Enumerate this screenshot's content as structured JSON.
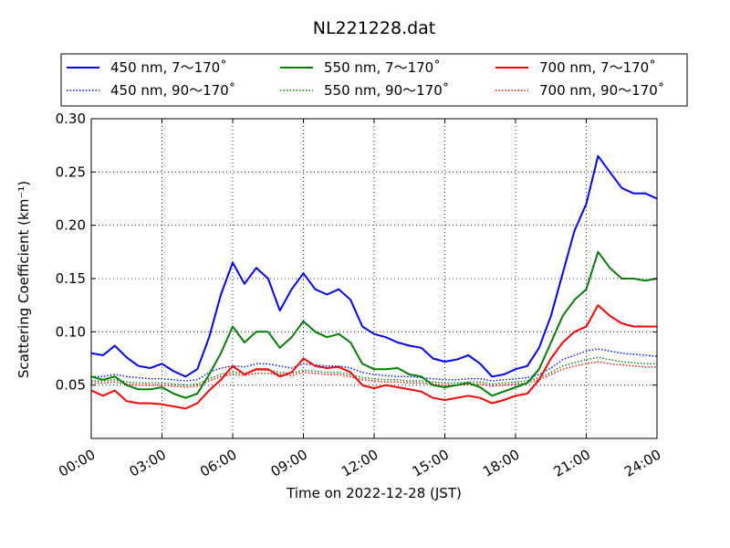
{
  "chart_data": {
    "type": "line",
    "title": "NL221228.dat",
    "xlabel": "Time on 2022-12-28 (JST)",
    "ylabel": "Scattering Coefficient (km⁻¹)",
    "xlim": [
      0,
      24
    ],
    "ylim": [
      0.0,
      0.3
    ],
    "grid": true,
    "legend_position": "top",
    "x_tick_labels": [
      "00:00",
      "03:00",
      "06:00",
      "09:00",
      "12:00",
      "15:00",
      "18:00",
      "21:00",
      "24:00"
    ],
    "y_ticks": [
      0.05,
      0.1,
      0.15,
      0.2,
      0.25,
      0.3
    ],
    "y_tick_labels": [
      "0.05",
      "0.10",
      "0.15",
      "0.20",
      "0.25",
      "0.30"
    ],
    "x": [
      0,
      0.5,
      1,
      1.5,
      2,
      2.5,
      3,
      3.5,
      4,
      4.5,
      5,
      5.5,
      6,
      6.5,
      7,
      7.5,
      8,
      8.5,
      9,
      9.5,
      10,
      10.5,
      11,
      11.5,
      12,
      12.5,
      13,
      13.5,
      14,
      14.5,
      15,
      15.5,
      16,
      16.5,
      17,
      17.5,
      18,
      18.5,
      19,
      19.5,
      20,
      20.5,
      21,
      21.5,
      22,
      22.5,
      23,
      23.5,
      24
    ],
    "series": [
      {
        "name": "450 nm, 7～170˚",
        "color": "#0000ff",
        "style": "solid",
        "values": [
          0.08,
          0.078,
          0.087,
          0.076,
          0.068,
          0.066,
          0.07,
          0.063,
          0.058,
          0.065,
          0.095,
          0.135,
          0.165,
          0.145,
          0.16,
          0.15,
          0.12,
          0.14,
          0.155,
          0.14,
          0.135,
          0.14,
          0.13,
          0.105,
          0.098,
          0.095,
          0.09,
          0.087,
          0.085,
          0.075,
          0.072,
          0.074,
          0.078,
          0.07,
          0.058,
          0.06,
          0.065,
          0.068,
          0.085,
          0.115,
          0.155,
          0.195,
          0.22,
          0.265,
          0.25,
          0.235,
          0.23,
          0.23,
          0.225
        ]
      },
      {
        "name": "450 nm, 90～170˚",
        "color": "#0000ff",
        "style": "dotted",
        "values": [
          0.058,
          0.058,
          0.06,
          0.058,
          0.057,
          0.056,
          0.056,
          0.055,
          0.054,
          0.055,
          0.062,
          0.066,
          0.068,
          0.067,
          0.07,
          0.07,
          0.068,
          0.066,
          0.07,
          0.069,
          0.068,
          0.068,
          0.066,
          0.062,
          0.06,
          0.059,
          0.058,
          0.058,
          0.057,
          0.056,
          0.055,
          0.055,
          0.056,
          0.056,
          0.054,
          0.055,
          0.056,
          0.057,
          0.06,
          0.066,
          0.074,
          0.078,
          0.082,
          0.084,
          0.082,
          0.08,
          0.079,
          0.078,
          0.077
        ]
      },
      {
        "name": "550 nm, 7～170˚",
        "color": "#008000",
        "style": "solid",
        "values": [
          0.058,
          0.055,
          0.058,
          0.05,
          0.046,
          0.046,
          0.048,
          0.042,
          0.038,
          0.042,
          0.06,
          0.08,
          0.105,
          0.09,
          0.1,
          0.1,
          0.085,
          0.095,
          0.11,
          0.1,
          0.095,
          0.098,
          0.09,
          0.07,
          0.065,
          0.065,
          0.066,
          0.06,
          0.058,
          0.05,
          0.048,
          0.05,
          0.052,
          0.048,
          0.04,
          0.044,
          0.048,
          0.052,
          0.065,
          0.09,
          0.115,
          0.13,
          0.14,
          0.175,
          0.16,
          0.15,
          0.15,
          0.148,
          0.15
        ]
      },
      {
        "name": "550 nm, 90～170˚",
        "color": "#008000",
        "style": "dotted",
        "values": [
          0.054,
          0.054,
          0.055,
          0.053,
          0.052,
          0.052,
          0.052,
          0.051,
          0.05,
          0.051,
          0.056,
          0.06,
          0.062,
          0.061,
          0.064,
          0.064,
          0.062,
          0.061,
          0.064,
          0.063,
          0.062,
          0.062,
          0.06,
          0.057,
          0.056,
          0.055,
          0.055,
          0.054,
          0.054,
          0.053,
          0.052,
          0.052,
          0.053,
          0.053,
          0.051,
          0.052,
          0.053,
          0.054,
          0.057,
          0.062,
          0.068,
          0.071,
          0.074,
          0.076,
          0.074,
          0.072,
          0.071,
          0.07,
          0.07
        ]
      },
      {
        "name": "700 nm, 7～170˚",
        "color": "#ff0000",
        "style": "solid",
        "values": [
          0.045,
          0.04,
          0.045,
          0.035,
          0.033,
          0.033,
          0.032,
          0.03,
          0.028,
          0.033,
          0.045,
          0.055,
          0.068,
          0.06,
          0.065,
          0.065,
          0.058,
          0.062,
          0.075,
          0.068,
          0.066,
          0.067,
          0.062,
          0.05,
          0.047,
          0.05,
          0.048,
          0.046,
          0.044,
          0.038,
          0.036,
          0.038,
          0.04,
          0.038,
          0.033,
          0.036,
          0.04,
          0.042,
          0.055,
          0.075,
          0.09,
          0.1,
          0.105,
          0.125,
          0.115,
          0.108,
          0.105,
          0.105,
          0.105
        ]
      },
      {
        "name": "700 nm, 90～170˚",
        "color": "#ff0000",
        "style": "dotted",
        "values": [
          0.052,
          0.052,
          0.053,
          0.051,
          0.05,
          0.05,
          0.05,
          0.049,
          0.048,
          0.049,
          0.054,
          0.058,
          0.06,
          0.059,
          0.061,
          0.061,
          0.06,
          0.059,
          0.062,
          0.061,
          0.06,
          0.06,
          0.058,
          0.055,
          0.054,
          0.053,
          0.053,
          0.052,
          0.052,
          0.051,
          0.05,
          0.05,
          0.051,
          0.051,
          0.049,
          0.05,
          0.051,
          0.052,
          0.055,
          0.06,
          0.065,
          0.068,
          0.07,
          0.072,
          0.07,
          0.069,
          0.068,
          0.067,
          0.067
        ]
      }
    ]
  }
}
